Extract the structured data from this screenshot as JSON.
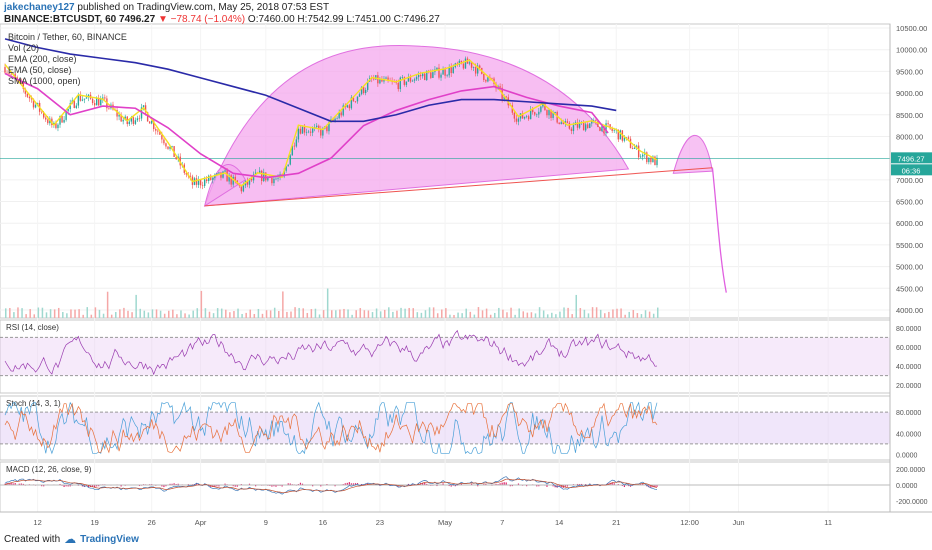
{
  "header": {
    "author": "jakechaney127",
    "published_text": "published on TradingView.com, May 25, 2018 07:53 EST",
    "symbol": "BINANCE:BTCUSDT, 60",
    "last": "7496.27",
    "change": "−78.74 (−1.04%)",
    "open": "O:7460.00",
    "high": "H:7542.99",
    "low": "L:7451.00",
    "close": "C:7496.27"
  },
  "legend": {
    "title": "Bitcoin / Tether, 60, BINANCE",
    "vol": "Vol (20)",
    "ema200": "EMA (200, close)",
    "ema50": "EMA (50, close)",
    "sma": "SMA (1000, open)"
  },
  "price_labels": {
    "last": "7496.27",
    "secondary": "06:36"
  },
  "footer": {
    "created_with": "Created with",
    "brand": "TradingView"
  },
  "colors": {
    "up": "#26a69a",
    "down": "#ef5350",
    "ema50": "#e040c8",
    "ema200": "#2a2aa8",
    "yellow": "#f5e020",
    "cup_fill": "#f4a8ee",
    "rsi": "#9a3cb0",
    "stoch_k": "#4aa0d8",
    "stoch_d": "#e8703a",
    "macd_hist": "#e0206a"
  },
  "chart_data": [
    {
      "type": "line",
      "title": "Bitcoin / Tether, 60, BINANCE",
      "x_ticks": [
        "12",
        "19",
        "26",
        "Apr",
        "9",
        "16",
        "23",
        "May",
        "7",
        "14",
        "21",
        "12:00",
        "Jun",
        "11"
      ],
      "y_ticks": [
        "10500.00",
        "10000.00",
        "9500.00",
        "9000.00",
        "8500.00",
        "8000.00",
        "7000.00",
        "6500.00",
        "6000.00",
        "5500.00",
        "5000.00",
        "4500.00",
        "4000.00"
      ],
      "ylim": [
        4000,
        10500
      ],
      "series": [
        {
          "name": "EMA (50, close)",
          "x": [
            0,
            4,
            8,
            12,
            16,
            20,
            24,
            28,
            32,
            36,
            40,
            44,
            48,
            52,
            56,
            60,
            64,
            68,
            72,
            74
          ],
          "y": [
            9450,
            9100,
            8500,
            8700,
            8650,
            8200,
            7600,
            7150,
            7050,
            7150,
            7500,
            8250,
            8600,
            8850,
            9050,
            9150,
            8900,
            8700,
            8550,
            8080
          ]
        },
        {
          "name": "EMA (200, close)",
          "x": [
            0,
            4,
            8,
            12,
            16,
            20,
            24,
            28,
            32,
            36,
            40,
            44,
            48,
            52,
            56,
            60,
            64,
            68,
            72,
            75
          ],
          "y": [
            10250,
            10050,
            9900,
            9800,
            9700,
            9550,
            9350,
            9150,
            8950,
            8650,
            8350,
            8350,
            8500,
            8720,
            8850,
            8850,
            8800,
            8750,
            8700,
            8600
          ]
        }
      ]
    },
    {
      "type": "line",
      "title": "RSI (14, close)",
      "y_ticks": [
        "80.0000",
        "60.0000",
        "40.0000",
        "20.0000"
      ],
      "ylim": [
        15,
        85
      ]
    },
    {
      "type": "line",
      "title": "Stoch (14, 3, 1)",
      "y_ticks": [
        "80.0000",
        "40.0000",
        "0.0000"
      ],
      "ylim": [
        -5,
        105
      ]
    },
    {
      "type": "line",
      "title": "MACD (12, 26, close, 9)",
      "y_ticks": [
        "200.0000",
        "0.0000",
        "-200.0000"
      ],
      "ylim": [
        -300,
        250
      ]
    }
  ]
}
